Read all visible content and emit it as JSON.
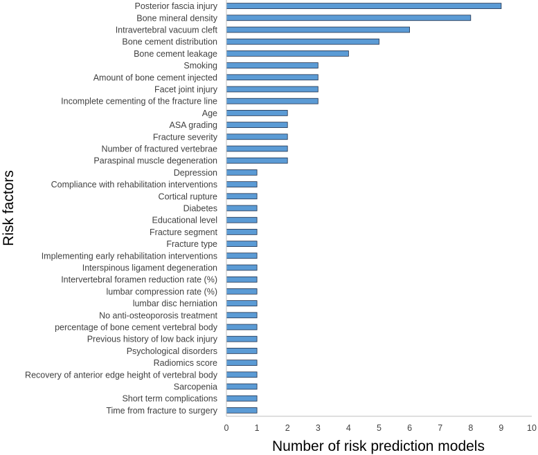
{
  "chart_data": {
    "type": "bar",
    "orientation": "horizontal",
    "title": "",
    "xlabel": "Number of risk prediction models",
    "ylabel": "Risk factors",
    "xlim": [
      0,
      10
    ],
    "xticks": [
      0,
      1,
      2,
      3,
      4,
      5,
      6,
      7,
      8,
      9,
      10
    ],
    "grid": false,
    "legend": "none",
    "bar_color": "#5b9bd5",
    "bar_edge_color": "#1f2f4a",
    "categories": [
      "Posterior fascia injury",
      "Bone mineral density",
      "Intravertebral vacuum cleft",
      "Bone cement distribution",
      "Bone cement leakage",
      "Smoking",
      "Amount of bone cement injected",
      "Facet joint injury",
      "Incomplete cementing of the fracture line",
      "Age",
      "ASA grading",
      "Fracture severity",
      "Number of fractured vertebrae",
      "Paraspinal muscle degeneration",
      "Depression",
      "Compliance with rehabilitation interventions",
      "Cortical rupture",
      "Diabetes",
      "Educational level",
      "Fracture segment",
      "Fracture type",
      "Implementing early rehabilitation interventions",
      "Interspinous ligament degeneration",
      "Intervertebral foramen reduction rate (%)",
      "lumbar compression rate (%)",
      "lumbar disc herniation",
      "No anti-osteoporosis treatment",
      "percentage of bone cement vertebral body",
      "Previous history of low back injury",
      "Psychological disorders",
      "Radiomics score",
      "Recovery of anterior edge height of vertebral body",
      "Sarcopenia",
      "Short term complications",
      "Time from fracture to surgery"
    ],
    "values": [
      9,
      8,
      6,
      5,
      4,
      3,
      3,
      3,
      3,
      2,
      2,
      2,
      2,
      2,
      1,
      1,
      1,
      1,
      1,
      1,
      1,
      1,
      1,
      1,
      1,
      1,
      1,
      1,
      1,
      1,
      1,
      1,
      1,
      1,
      1
    ]
  }
}
